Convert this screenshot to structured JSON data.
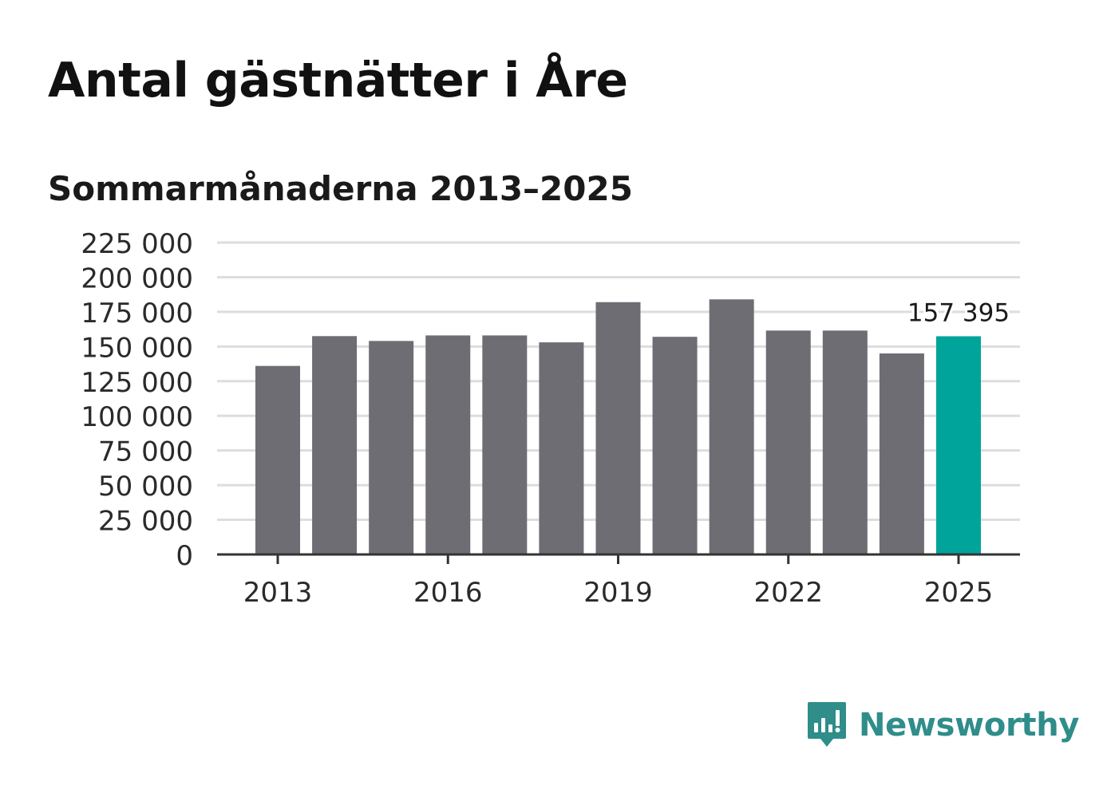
{
  "chart_data": {
    "type": "bar",
    "title": "Antal gästnätter i Åre",
    "subtitle": "Sommarmånaderna 2013–2025",
    "xlabel": "",
    "ylabel": "",
    "categories": [
      "2013",
      "2014",
      "2015",
      "2016",
      "2017",
      "2018",
      "2019",
      "2020",
      "2021",
      "2022",
      "2023",
      "2024",
      "2025"
    ],
    "values": [
      136000,
      157500,
      154000,
      158000,
      158000,
      153000,
      182000,
      157000,
      184000,
      161500,
      161500,
      145000,
      157395
    ],
    "x_tick_labels": [
      "2013",
      "2016",
      "2019",
      "2022",
      "2025"
    ],
    "y_tick_labels": [
      "0",
      "25 000",
      "50 000",
      "75 000",
      "100 000",
      "125 000",
      "150 000",
      "175 000",
      "200 000",
      "225 000"
    ],
    "ylim": [
      0,
      225000
    ],
    "grid": true,
    "legend": "none",
    "highlight": {
      "category": "2025",
      "label": "157 395"
    },
    "colors": {
      "bar": "#6e6d74",
      "highlight": "#00a49a",
      "grid": "#dddddd",
      "axis": "#333333"
    }
  },
  "brand": {
    "name": "Newsworthy",
    "icon": "newsworthy-logo-icon",
    "color": "#2f8d8a"
  }
}
